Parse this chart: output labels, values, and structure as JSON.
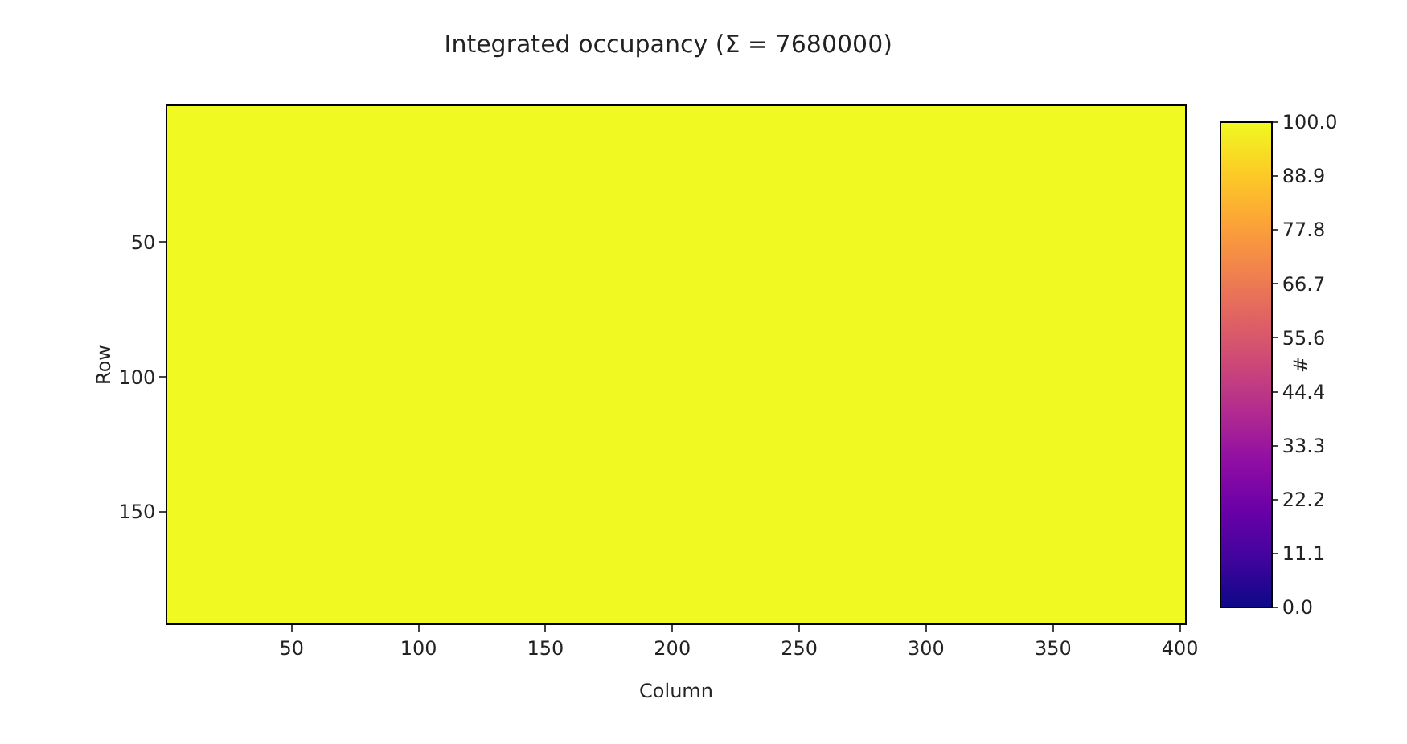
{
  "chart_data": {
    "type": "heatmap",
    "title": "Integrated occupancy (Σ = 7680000)",
    "xlabel": "Column",
    "ylabel": "Row",
    "clabel": "#",
    "cells": [
      [
        100
      ]
    ],
    "xlim": [
      1,
      402
    ],
    "ylim": [
      191.5,
      -0.5
    ],
    "xticks": [
      50,
      100,
      150,
      200,
      250,
      300,
      350,
      400
    ],
    "yticks": [
      50,
      100,
      150
    ],
    "clim": [
      0,
      100
    ],
    "cticks": [
      {
        "value": 0,
        "label": "0.0"
      },
      11.1,
      22.2,
      33.3,
      44.4,
      55.6,
      66.7,
      77.8,
      88.9,
      {
        "value": 100,
        "label": "100.0"
      }
    ]
  }
}
